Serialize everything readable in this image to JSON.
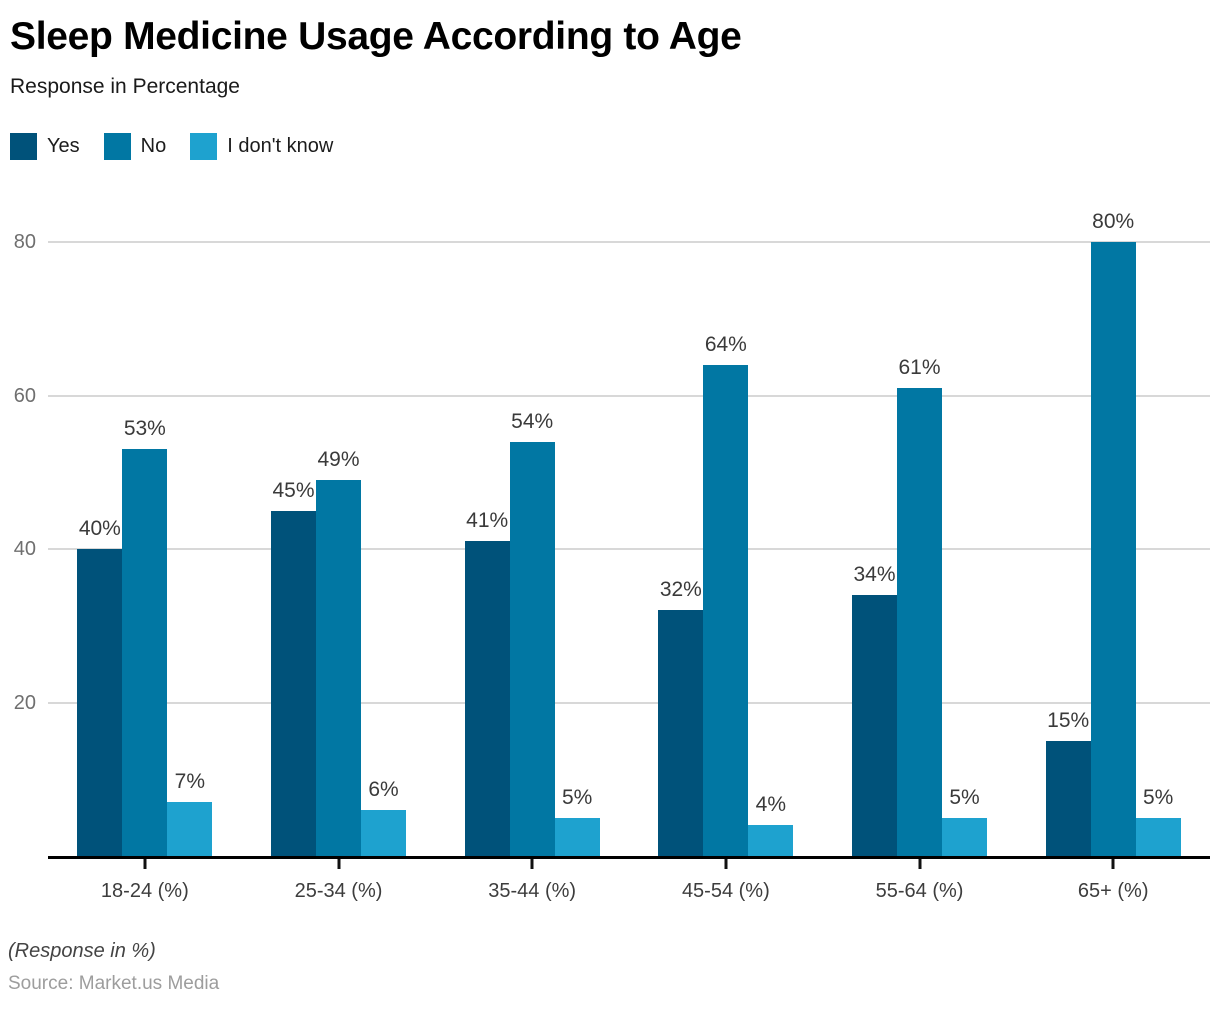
{
  "header": {
    "title": "Sleep Medicine Usage According to Age",
    "subtitle": "Response in Percentage"
  },
  "legend": [
    {
      "label": "Yes",
      "color": "#00527A"
    },
    {
      "label": "No",
      "color": "#0177A3"
    },
    {
      "label": "I don't know",
      "color": "#1EA2CF"
    }
  ],
  "chart_data": {
    "type": "bar",
    "title": "Sleep Medicine Usage According to Age",
    "subtitle": "Response in Percentage",
    "categories": [
      "18-24 (%)",
      "25-34 (%)",
      "35-44 (%)",
      "45-54 (%)",
      "55-64 (%)",
      "65+ (%)"
    ],
    "series": [
      {
        "name": "Yes",
        "color": "#00527A",
        "values": [
          40,
          45,
          41,
          32,
          34,
          15
        ]
      },
      {
        "name": "No",
        "color": "#0177A3",
        "values": [
          53,
          49,
          54,
          64,
          61,
          80
        ]
      },
      {
        "name": "I don't know",
        "color": "#1EA2CF",
        "values": [
          7,
          6,
          5,
          4,
          5,
          5
        ]
      }
    ],
    "data_label_suffix": "%",
    "y_ticks": [
      20,
      40,
      60,
      80
    ],
    "ylim": [
      0,
      86
    ],
    "xlabel": "",
    "ylabel": "",
    "grid": "horizontal",
    "legend_position": "top-left"
  },
  "style": {
    "grid_color": "#D8D8D8",
    "axis_color": "#000000",
    "y_tick_label_color": "#6F6F6F",
    "x_tick_label_color": "#3D3D3D",
    "data_label_color": "#3A3A3A"
  },
  "footer": {
    "note": "(Response in %)",
    "source": "Source: Market.us Media"
  }
}
